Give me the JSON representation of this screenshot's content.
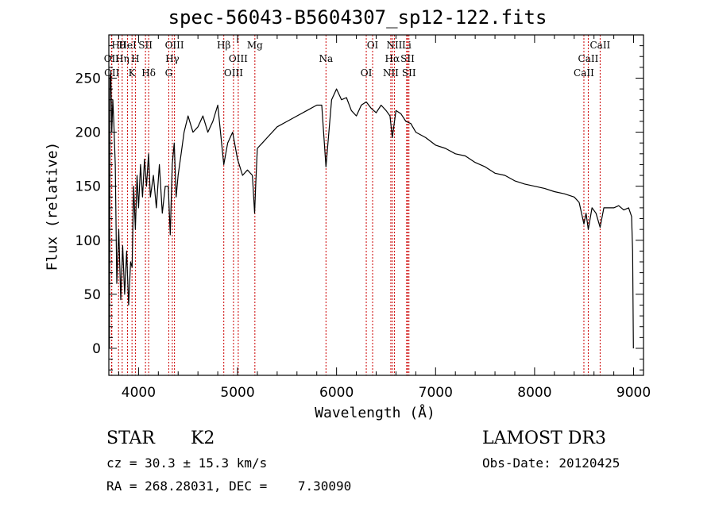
{
  "title": "spec-56043-B5604307_sp12-122.fits",
  "footer": {
    "object_class": "STAR",
    "subclass": "K2",
    "survey": "LAMOST DR3",
    "cz": "cz = 30.3 ± 15.3 km/s",
    "obs_date": "Obs-Date: 20120425",
    "coords": "RA = 268.28031, DEC =    7.30090"
  },
  "chart_data": {
    "type": "line",
    "title": "spec-56043-B5604307_sp12-122.fits",
    "xlabel": "Wavelength (Å)",
    "ylabel": "Flux (relative)",
    "xlim": [
      3700,
      9100
    ],
    "ylim": [
      -25,
      290
    ],
    "xticks": [
      4000,
      5000,
      6000,
      7000,
      8000,
      9000
    ],
    "yticks": [
      0,
      50,
      100,
      150,
      200,
      250
    ],
    "grid": false,
    "line_color": "#000000",
    "marker_color": "#cc0000",
    "spectrum": {
      "name": "flux",
      "x": [
        3705,
        3712,
        3720,
        3730,
        3740,
        3750,
        3765,
        3780,
        3800,
        3820,
        3840,
        3860,
        3880,
        3900,
        3920,
        3935,
        3950,
        3968,
        3985,
        4000,
        4020,
        4040,
        4060,
        4080,
        4101,
        4120,
        4150,
        4180,
        4210,
        4240,
        4270,
        4300,
        4320,
        4340,
        4360,
        4380,
        4400,
        4430,
        4460,
        4500,
        4550,
        4600,
        4650,
        4700,
        4750,
        4800,
        4861,
        4900,
        4950,
        5000,
        5050,
        5100,
        5150,
        5172,
        5183,
        5200,
        5250,
        5300,
        5400,
        5500,
        5600,
        5700,
        5800,
        5850,
        5893,
        5950,
        6000,
        6050,
        6100,
        6150,
        6200,
        6250,
        6300,
        6350,
        6400,
        6450,
        6500,
        6540,
        6563,
        6600,
        6650,
        6700,
        6750,
        6800,
        6900,
        7000,
        7100,
        7200,
        7300,
        7400,
        7500,
        7600,
        7700,
        7800,
        7900,
        8000,
        8100,
        8200,
        8300,
        8400,
        8450,
        8498,
        8520,
        8542,
        8580,
        8620,
        8662,
        8700,
        8750,
        8800,
        8850,
        8900,
        8950,
        8980,
        8990,
        8998
      ],
      "y": [
        0,
        250,
        255,
        200,
        230,
        210,
        170,
        60,
        110,
        45,
        95,
        50,
        90,
        40,
        80,
        75,
        150,
        110,
        160,
        130,
        170,
        140,
        175,
        150,
        180,
        140,
        160,
        130,
        170,
        125,
        150,
        150,
        105,
        170,
        190,
        140,
        160,
        180,
        200,
        215,
        200,
        205,
        215,
        200,
        210,
        225,
        170,
        190,
        200,
        175,
        160,
        165,
        160,
        125,
        150,
        185,
        190,
        195,
        205,
        210,
        215,
        220,
        225,
        225,
        168,
        230,
        240,
        230,
        232,
        220,
        215,
        225,
        228,
        222,
        218,
        225,
        220,
        215,
        195,
        220,
        217,
        210,
        208,
        200,
        195,
        188,
        185,
        180,
        178,
        172,
        168,
        162,
        160,
        155,
        152,
        150,
        148,
        145,
        143,
        140,
        135,
        115,
        125,
        110,
        130,
        125,
        112,
        130,
        130,
        130,
        132,
        128,
        130,
        122,
        90,
        0
      ]
    },
    "lines": [
      {
        "label": "Hθ",
        "x": 3798
      },
      {
        "label": "OII",
        "x": 3727
      },
      {
        "label": "OII",
        "x": 3730
      },
      {
        "label": "HeI",
        "x": 3889
      },
      {
        "label": "Hη",
        "x": 3835
      },
      {
        "label": "K",
        "x": 3934
      },
      {
        "label": "SII",
        "x": 4070
      },
      {
        "label": "H",
        "x": 3968
      },
      {
        "label": "Hδ",
        "x": 4102
      },
      {
        "label": "OIII",
        "x": 4363
      },
      {
        "label": "Hγ",
        "x": 4341
      },
      {
        "label": "G",
        "x": 4305
      },
      {
        "label": "Hβ",
        "x": 4861
      },
      {
        "label": "OIII",
        "x": 5007
      },
      {
        "label": "OIII",
        "x": 4959
      },
      {
        "label": "Mg",
        "x": 5175
      },
      {
        "label": "Na",
        "x": 5893
      },
      {
        "label": "OI",
        "x": 6300
      },
      {
        "label": "OI",
        "x": 6364
      },
      {
        "label": "Hα",
        "x": 6563
      },
      {
        "label": "NII",
        "x": 6548
      },
      {
        "label": "NII",
        "x": 6584
      },
      {
        "label": "SII",
        "x": 6717
      },
      {
        "label": "SII",
        "x": 6731
      },
      {
        "label": "Li",
        "x": 6708
      },
      {
        "label": "CaII",
        "x": 8542
      },
      {
        "label": "CaII",
        "x": 8498
      },
      {
        "label": "CaII",
        "x": 8662
      }
    ]
  }
}
